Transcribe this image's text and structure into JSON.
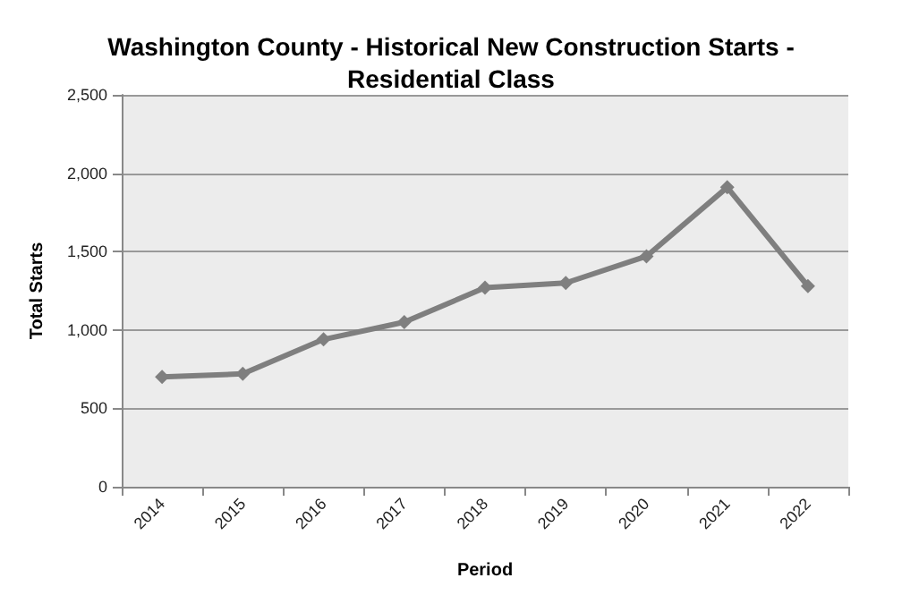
{
  "chart_data": {
    "type": "line",
    "title": "Washington County - Historical New Construction Starts -\nResidential Class",
    "xlabel": "Period",
    "ylabel": "Total Starts",
    "categories": [
      "2014",
      "2015",
      "2016",
      "2017",
      "2018",
      "2019",
      "2020",
      "2021",
      "2022"
    ],
    "series": [
      {
        "color": "#7f7f7f",
        "values": [
          700,
          720,
          940,
          1050,
          1270,
          1300,
          1470,
          1910,
          1280
        ]
      }
    ],
    "ylim": [
      0,
      2500
    ],
    "yticks": [
      0,
      500,
      {
        "value": 1000,
        "label": "1,000"
      },
      {
        "value": 1500,
        "label": "1,500"
      },
      {
        "value": 2000,
        "label": "2,000"
      },
      {
        "value": 2500,
        "label": "2,500"
      }
    ],
    "grid": "y",
    "marker": "diamond",
    "line_style": "solid"
  }
}
